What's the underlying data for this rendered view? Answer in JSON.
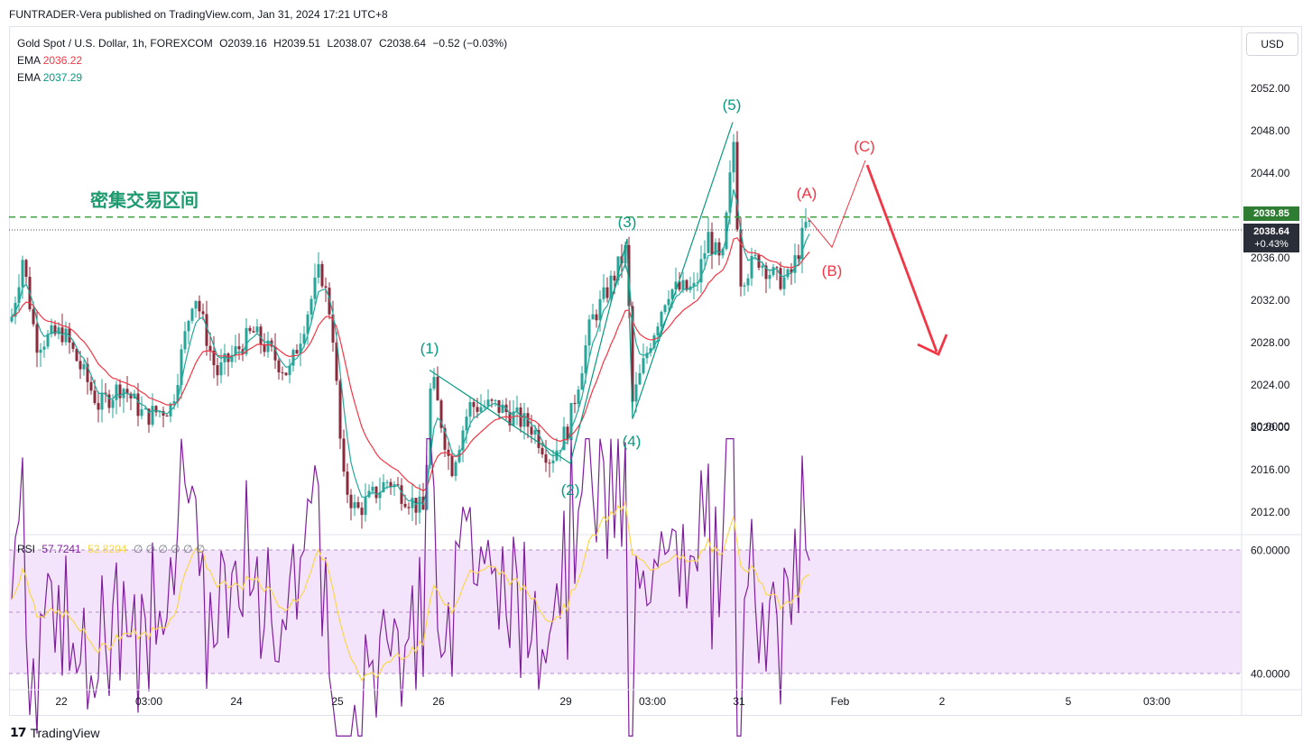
{
  "header": {
    "publisher_line": "FUNTRADER-Vera published on TradingView.com, Jan 31, 2024 17:21 UTC+8"
  },
  "legend": {
    "symbol": "Gold Spot / U.S. Dollar, 1h, FOREXCOM",
    "open": "O2039.16",
    "high": "H2039.51",
    "low": "L2038.07",
    "close": "C2038.64",
    "change": "−0.52 (−0.03%)",
    "ema1_label": "EMA",
    "ema1_value": "2036.22",
    "ema2_label": "EMA",
    "ema2_value": "2037.29"
  },
  "rsi_legend": {
    "label": "RSI",
    "value1": "57.7241",
    "value2": "52.8204",
    "placeholders": "∅ ∅ ∅ ∅ ∅ ∅"
  },
  "currency_button": "USD",
  "footer": {
    "brand": "TradingView"
  },
  "chart_data": {
    "type": "candlestick",
    "symbol": "Gold Spot / U.S. Dollar",
    "timeframe": "1h",
    "price_axis_ticks": [
      "2052.00",
      "2048.00",
      "2044.00",
      "2040.00",
      "2036.00",
      "2032.00",
      "2028.00",
      "2024.00",
      "2020.00",
      "2016.00",
      "2012.00"
    ],
    "rsi_axis_ticks": [
      "80.0000",
      "60.0000",
      "40.0000"
    ],
    "time_axis_labels": [
      "22",
      "03:00",
      "24",
      "25",
      "26",
      "29",
      "03:00",
      "31",
      "Feb",
      "2",
      "5",
      "03:00"
    ],
    "ylim": [
      2010,
      2056
    ],
    "current_price": "2038.64",
    "current_change": "+0.43%",
    "resistance_level": "2039.85",
    "zone_label": "密集交易区间",
    "wave_points": [
      {
        "label": "(1)",
        "price": 2025.4
      },
      {
        "label": "(2)",
        "price": 2016.6
      },
      {
        "label": "(3)",
        "price": 2037.8
      },
      {
        "label": "(4)",
        "price": 2020.8
      },
      {
        "label": "(5)",
        "price": 2048.8
      }
    ],
    "corrective_labels": [
      "(A)",
      "(B)",
      "(C)"
    ],
    "colors": {
      "bull_candle": "#26a69a",
      "bear_candle": "#8b2a3a",
      "ema_fast": "#26a69a",
      "ema_slow": "#f23645",
      "wave_line": "#089981",
      "correction_line": "#f23645",
      "zone_line": "#43a047",
      "rsi_line": "#7e1f9b",
      "rsi_ma": "#f9d64d",
      "rsi_band": "#f4e4fb"
    },
    "grid": false
  },
  "icons": {
    "logo": "tradingview-logo-icon"
  }
}
